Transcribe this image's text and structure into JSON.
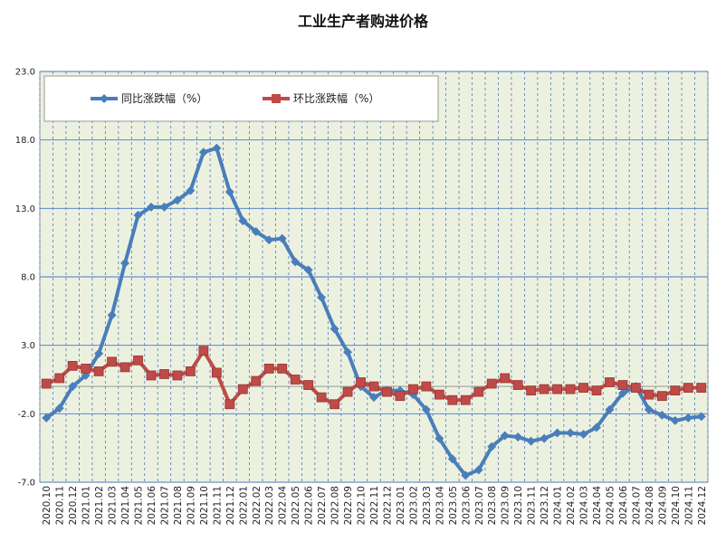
{
  "chart_data": {
    "type": "line",
    "title": "工业生产者购进价格",
    "ylim": [
      -7.0,
      23.0
    ],
    "yticks": [
      "23.0",
      "18.0",
      "13.0",
      "8.0",
      "3.0",
      "-2.0",
      "-7.0"
    ],
    "categories": [
      "2020.10",
      "2020.11",
      "2020.12",
      "2021.01",
      "2021.02",
      "2021.03",
      "2021.04",
      "2021.05",
      "2021.06",
      "2021.07",
      "2021.08",
      "2021.09",
      "2021.10",
      "2021.11",
      "2021.12",
      "2022.01",
      "2022.02",
      "2022.03",
      "2022.04",
      "2022.05",
      "2022.06",
      "2022.07",
      "2022.08",
      "2022.09",
      "2022.10",
      "2022.11",
      "2022.12",
      "2023.01",
      "2023.02",
      "2023.03",
      "2023.04",
      "2023.05",
      "2023.06",
      "2023.07",
      "2023.08",
      "2023.09",
      "2023.10",
      "2023.11",
      "2023.12",
      "2024.01",
      "2024.02",
      "2024.03",
      "2024.04",
      "2024.05",
      "2024.06",
      "2024.07",
      "2024.08",
      "2024.09",
      "2024.10",
      "2024.11",
      "2024.12"
    ],
    "series": [
      {
        "name": "同比涨跌幅（%）",
        "color": "#4a7ebb",
        "marker": "diamond",
        "values": [
          -2.3,
          -1.6,
          0.0,
          0.8,
          2.4,
          5.2,
          9.0,
          12.5,
          13.1,
          13.1,
          13.6,
          14.3,
          17.1,
          17.4,
          14.2,
          12.1,
          11.3,
          10.7,
          10.8,
          9.1,
          8.5,
          6.5,
          4.2,
          2.5,
          0.0,
          -0.8,
          -0.3,
          -0.3,
          -0.6,
          -1.7,
          -3.8,
          -5.3,
          -6.5,
          -6.1,
          -4.4,
          -3.6,
          -3.7,
          -4.0,
          -3.8,
          -3.4,
          -3.4,
          -3.5,
          -3.0,
          -1.7,
          -0.5,
          0.0,
          -1.7,
          -2.1,
          -2.5,
          -2.3,
          -2.2
        ]
      },
      {
        "name": "环比涨跌幅（%）",
        "color": "#be4b48",
        "marker": "square",
        "values": [
          0.2,
          0.6,
          1.5,
          1.3,
          1.1,
          1.8,
          1.4,
          1.9,
          0.8,
          0.9,
          0.8,
          1.1,
          2.6,
          1.0,
          -1.3,
          -0.2,
          0.4,
          1.3,
          1.3,
          0.5,
          0.1,
          -0.8,
          -1.3,
          -0.4,
          0.3,
          0.0,
          -0.4,
          -0.7,
          -0.2,
          0.0,
          -0.6,
          -1.0,
          -1.0,
          -0.4,
          0.2,
          0.6,
          0.1,
          -0.3,
          -0.2,
          -0.2,
          -0.2,
          -0.1,
          -0.3,
          0.3,
          0.1,
          -0.1,
          -0.6,
          -0.7,
          -0.3,
          -0.1,
          -0.1
        ]
      }
    ],
    "grid": true,
    "legend_position": "top-left"
  }
}
